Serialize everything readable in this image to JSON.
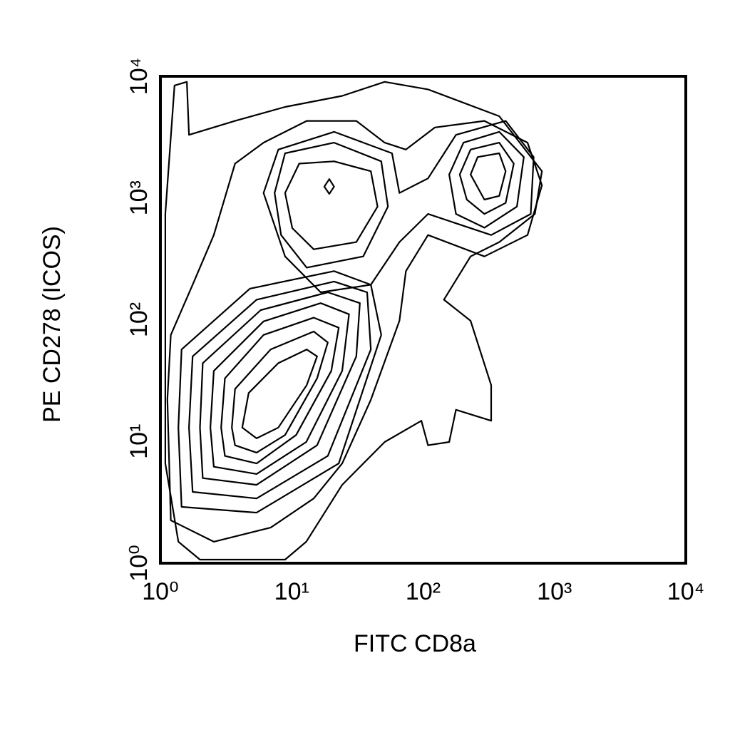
{
  "chart_data": {
    "type": "contour",
    "x_label": "FITC CD8a",
    "y_label": "PE CD278 (ICOS)",
    "xscale": "log",
    "yscale": "log",
    "color": "#000000",
    "xlim": [
      1,
      10000
    ],
    "ylim": [
      1,
      10000
    ],
    "xticks": [
      {
        "value": 1,
        "label": "10⁰"
      },
      {
        "value": 10,
        "label": "10¹"
      },
      {
        "value": 100,
        "label": "10²"
      },
      {
        "value": 1000,
        "label": "10³"
      },
      {
        "value": 10000,
        "label": "10⁴"
      }
    ],
    "yticks": [
      {
        "value": 1,
        "label": "10⁰"
      },
      {
        "value": 10,
        "label": "10¹"
      },
      {
        "value": 100,
        "label": "10²"
      },
      {
        "value": 1000,
        "label": "10³"
      },
      {
        "value": 10000,
        "label": "10⁴"
      }
    ],
    "contours": [
      {
        "x": [
          4.2,
          4.7,
          7.9,
          13,
          15.6,
          13,
          7.9,
          5.4
        ],
        "y": [
          13,
          25,
          44,
          57,
          50,
          29,
          13,
          10.6
        ]
      },
      {
        "x": [
          3.5,
          3.7,
          6.9,
          14.7,
          18.8,
          15.6,
          8.9,
          5.4,
          3.7
        ],
        "y": [
          13,
          27,
          57,
          80,
          65,
          33,
          11.3,
          8.1,
          9.3
        ]
      },
      {
        "x": [
          2.9,
          3.1,
          6.1,
          14.7,
          22.8,
          20,
          10.8,
          5.4,
          3.1
        ],
        "y": [
          13,
          33,
          75,
          104,
          86,
          38,
          11.3,
          6.6,
          7.6
        ]
      },
      {
        "x": [
          2.4,
          2.55,
          6.1,
          16.6,
          27.3,
          24.2,
          12.9,
          5.4,
          2.55
        ],
        "y": [
          13,
          38,
          97,
          137,
          111,
          38,
          9.9,
          5.4,
          6.2
        ]
      },
      {
        "x": [
          2,
          2.1,
          5.8,
          18.8,
          33,
          31,
          15.6,
          5.4,
          2.1
        ],
        "y": [
          13,
          44,
          120,
          168,
          137,
          50,
          9.3,
          4.4,
          5
        ]
      },
      {
        "x": [
          1.65,
          1.76,
          5.4,
          21,
          37.5,
          40,
          18.8,
          5.4,
          1.76
        ],
        "y": [
          13,
          50,
          146,
          206,
          168,
          57,
          7.6,
          3.4,
          3.85
        ]
      },
      {
        "x": [
          1.37,
          1.45,
          4.8,
          21,
          40,
          48,
          22.8,
          5.4,
          1.45
        ],
        "y": [
          13,
          57,
          180,
          251,
          194,
          75,
          6.6,
          2.6,
          2.9
        ]
      },
      {
        "x": [
          1.13,
          1.2,
          1.76,
          2.55,
          3.7,
          6.1,
          13,
          31,
          51,
          74,
          123,
          293,
          624,
          803,
          624,
          293,
          109,
          74,
          66,
          40,
          24.2,
          14.7,
          6.9,
          2.55,
          1.2
        ],
        "y": [
          22.2,
          75,
          194,
          496,
          1917,
          2850,
          4300,
          4300,
          2850,
          2500,
          3800,
          4300,
          2850,
          1270,
          496,
          331,
          496,
          251,
          98,
          22,
          6.6,
          3.4,
          1.96,
          1.5,
          2.25
        ]
      },
      {
        "x": [
          8.9,
          11.4,
          21,
          40,
          45,
          31,
          14.7,
          10.1
        ],
        "y": [
          1100,
          1917,
          2000,
          1660,
          850,
          434,
          379,
          566
        ]
      },
      {
        "x": [
          7.4,
          8.9,
          21,
          48,
          54,
          35,
          13,
          8.3
        ],
        "y": [
          1100,
          2330,
          2850,
          2000,
          850,
          331,
          268,
          496
        ]
      },
      {
        "x": [
          17.7,
          19.3,
          21,
          19.3
        ],
        "y": [
          1240,
          1430,
          1240,
          1080
        ]
      },
      {
        "x": [
          230,
          260,
          380,
          425,
          380,
          293
        ],
        "y": [
          1560,
          2170,
          2330,
          1660,
          1040,
          970
        ]
      },
      {
        "x": [
          190,
          230,
          380,
          490,
          425,
          293,
          215
        ],
        "y": [
          1560,
          2500,
          2850,
          1917,
          910,
          740,
          970
        ]
      },
      {
        "x": [
          158,
          203,
          380,
          585,
          518,
          293,
          178
        ],
        "y": [
          1560,
          2850,
          3500,
          2170,
          850,
          570,
          740
        ]
      },
      {
        "x": [
          6.1,
          7.9,
          21,
          58,
          66,
          109,
          178,
          425,
          695,
          660,
          330,
          109,
          66,
          40,
          16.6,
          8.9
        ],
        "y": [
          1100,
          2500,
          3500,
          2330,
          1100,
          1450,
          3300,
          4300,
          2170,
          740,
          496,
          740,
          434,
          194,
          168,
          331
        ]
      },
      {
        "x": [
          1.09,
          1.09,
          1.28,
          1.59,
          1.65,
          3.7,
          8.9,
          24.2,
          51,
          109,
          380,
          803,
          710,
          380,
          230,
          144,
          230,
          330,
          330,
          178,
          158,
          109,
          97,
          51,
          24.2,
          12.9,
          8.9,
          3.3,
          2,
          1.37
        ],
        "y": [
          6.6,
          740,
          8400,
          9000,
          3300,
          4300,
          5600,
          6900,
          9000,
          7800,
          4700,
          1660,
          740,
          434,
          331,
          146,
          98,
          29,
          14.8,
          18.2,
          9.9,
          9.3,
          14.8,
          9.9,
          4.4,
          1.5,
          1.07,
          1.07,
          1.07,
          1.5
        ]
      }
    ]
  }
}
